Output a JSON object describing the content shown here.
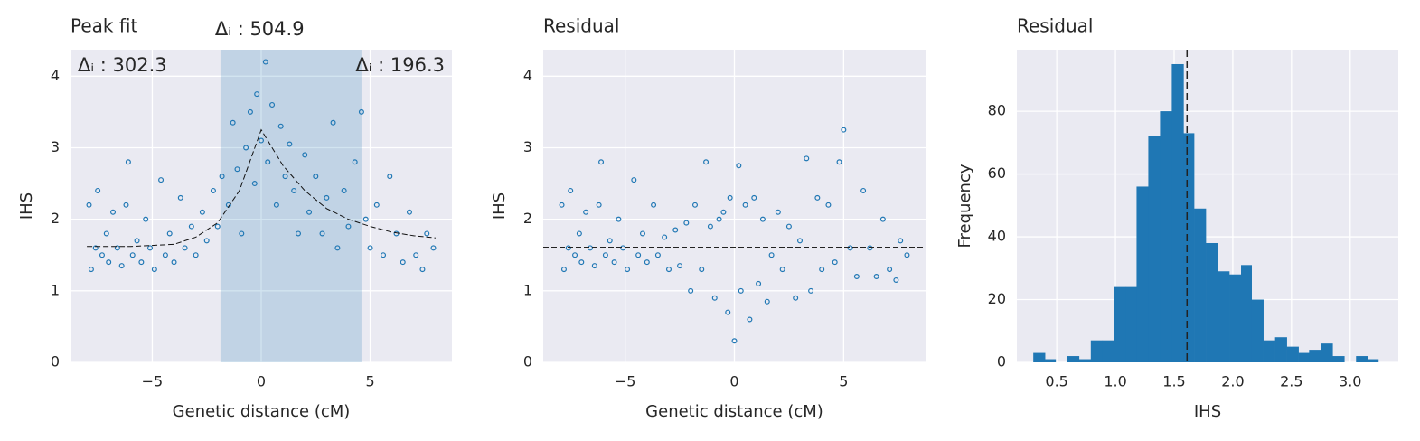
{
  "chart_data": [
    {
      "type": "scatter",
      "title": "Peak fit",
      "xlabel": "Genetic distance (cM)",
      "ylabel": "IHS",
      "color": "#1f77b4",
      "x": [
        -7.9,
        -7.8,
        -7.6,
        -7.5,
        -7.3,
        -7.1,
        -7,
        -6.8,
        -6.6,
        -6.4,
        -6.2,
        -6.1,
        -5.9,
        -5.7,
        -5.5,
        -5.3,
        -5.1,
        -4.9,
        -4.6,
        -4.4,
        -4.2,
        -4,
        -3.7,
        -3.5,
        -3.2,
        -3,
        -2.7,
        -2.5,
        -2.2,
        -2,
        -1.8,
        -1.5,
        -1.3,
        -1.1,
        -0.9,
        -0.7,
        -0.5,
        -0.3,
        -0.2,
        0,
        0.2,
        0.3,
        0.5,
        0.7,
        0.9,
        1.1,
        1.3,
        1.5,
        1.7,
        2,
        2.2,
        2.5,
        2.8,
        3,
        3.3,
        3.5,
        3.8,
        4,
        4.3,
        4.6,
        4.8,
        5,
        5.3,
        5.6,
        5.9,
        6.2,
        6.5,
        6.8,
        7.1,
        7.4,
        7.6,
        7.9
      ],
      "values": [
        2.2,
        1.3,
        1.6,
        2.4,
        1.5,
        1.8,
        1.4,
        2.1,
        1.6,
        1.35,
        2.2,
        2.8,
        1.5,
        1.7,
        1.4,
        2.0,
        1.6,
        1.3,
        2.55,
        1.5,
        1.8,
        1.4,
        2.3,
        1.6,
        1.9,
        1.5,
        2.1,
        1.7,
        2.4,
        1.9,
        2.6,
        2.2,
        3.35,
        2.7,
        1.8,
        3.0,
        3.5,
        2.5,
        3.75,
        3.1,
        4.2,
        2.8,
        3.6,
        2.2,
        3.3,
        2.6,
        3.05,
        2.4,
        1.8,
        2.9,
        2.1,
        2.6,
        1.8,
        2.3,
        3.35,
        1.6,
        2.4,
        1.9,
        2.8,
        3.5,
        2.0,
        1.6,
        2.2,
        1.5,
        2.6,
        1.8,
        1.4,
        2.1,
        1.5,
        1.3,
        1.8,
        1.6
      ],
      "fit": {
        "x": [
          -8,
          -6,
          -4,
          -3,
          -2,
          -1,
          0,
          1,
          2,
          3,
          4,
          5,
          6,
          7,
          8
        ],
        "y": [
          1.62,
          1.62,
          1.65,
          1.75,
          1.95,
          2.4,
          3.25,
          2.75,
          2.4,
          2.15,
          2.0,
          1.9,
          1.82,
          1.77,
          1.74
        ]
      },
      "span": [
        -1.87,
        4.6
      ],
      "annotations": [
        "Δᵢ : 504.9",
        "Δᵢ : 302.3",
        "Δᵢ : 196.3"
      ],
      "xlim": [
        -8.75,
        8.75
      ],
      "ylim": [
        0,
        4.37
      ],
      "xticks": [
        {
          "value": -5,
          "label": "−5"
        },
        0,
        5
      ],
      "yticks": [
        0,
        1,
        2,
        3,
        4
      ],
      "grid": true
    },
    {
      "type": "scatter",
      "title": "Residual",
      "xlabel": "Genetic distance (cM)",
      "ylabel": "IHS",
      "color": "#1f77b4",
      "x": [
        -7.9,
        -7.8,
        -7.6,
        -7.5,
        -7.3,
        -7.1,
        -7,
        -6.8,
        -6.6,
        -6.4,
        -6.2,
        -6.1,
        -5.9,
        -5.7,
        -5.5,
        -5.3,
        -5.1,
        -4.9,
        -4.6,
        -4.4,
        -4.2,
        -4,
        -3.7,
        -3.5,
        -3.2,
        -3,
        -2.7,
        -2.5,
        -2.2,
        -2,
        -1.8,
        -1.5,
        -1.3,
        -1.1,
        -0.9,
        -0.7,
        -0.5,
        -0.3,
        -0.2,
        0,
        0.2,
        0.3,
        0.5,
        0.7,
        0.9,
        1.1,
        1.3,
        1.5,
        1.7,
        2,
        2.2,
        2.5,
        2.8,
        3,
        3.3,
        3.5,
        3.8,
        4,
        4.3,
        4.6,
        4.8,
        5,
        5.3,
        5.6,
        5.9,
        6.2,
        6.5,
        6.8,
        7.1,
        7.4,
        7.6,
        7.9
      ],
      "values": [
        2.2,
        1.3,
        1.6,
        2.4,
        1.5,
        1.8,
        1.4,
        2.1,
        1.6,
        1.35,
        2.2,
        2.8,
        1.5,
        1.7,
        1.4,
        2.0,
        1.6,
        1.3,
        2.55,
        1.5,
        1.8,
        1.4,
        2.2,
        1.5,
        1.75,
        1.3,
        1.85,
        1.35,
        1.95,
        1.0,
        2.2,
        1.3,
        2.8,
        1.9,
        0.9,
        2.0,
        2.1,
        0.7,
        2.3,
        0.3,
        2.75,
        1.0,
        2.2,
        0.6,
        2.3,
        1.1,
        2.0,
        0.85,
        1.5,
        2.1,
        1.3,
        1.9,
        0.9,
        1.7,
        2.85,
        1.0,
        2.3,
        1.3,
        2.2,
        1.4,
        2.8,
        3.25,
        1.6,
        1.2,
        2.4,
        1.6,
        1.2,
        2.0,
        1.3,
        1.15,
        1.7,
        1.5
      ],
      "hline": 1.61,
      "xlim": [
        -8.75,
        8.75
      ],
      "ylim": [
        0,
        4.37
      ],
      "xticks": [
        {
          "value": -5,
          "label": "−5"
        },
        0,
        5
      ],
      "yticks": [
        0,
        1,
        2,
        3,
        4
      ],
      "grid": true
    },
    {
      "type": "histogram",
      "title": "Residual",
      "xlabel": "IHS",
      "ylabel": "Frequency",
      "color": "#1f77b4",
      "bins": [
        0.3,
        0.4,
        0.49,
        0.59,
        0.69,
        0.79,
        0.89,
        0.99,
        1.09,
        1.18,
        1.28,
        1.38,
        1.48,
        1.58,
        1.67,
        1.77,
        1.87,
        1.97,
        2.07,
        2.16,
        2.26,
        2.36,
        2.46,
        2.56,
        2.65,
        2.75,
        2.85,
        2.95,
        3.05,
        3.15,
        3.24
      ],
      "values": [
        3,
        1,
        0,
        2,
        1,
        7,
        7,
        24,
        24,
        56,
        72,
        80,
        95,
        73,
        49,
        38,
        29,
        28,
        31,
        20,
        7,
        8,
        5,
        3,
        4,
        6,
        2,
        0,
        2,
        1
      ],
      "vline": 1.61,
      "xlim": [
        0.16,
        3.41
      ],
      "ylim": [
        0,
        99.6
      ],
      "xticks": [
        0.5,
        {
          "value": 1,
          "label": "1.0"
        },
        1.5,
        {
          "value": 2,
          "label": "2.0"
        },
        2.5,
        {
          "value": 3,
          "label": "3.0"
        }
      ],
      "yticks": [
        0,
        20,
        40,
        60,
        80
      ],
      "grid": true
    }
  ]
}
